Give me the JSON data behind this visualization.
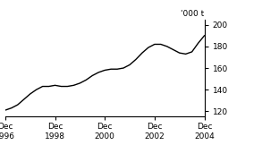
{
  "title": "",
  "ylabel": "'000 t",
  "ylim": [
    115,
    205
  ],
  "yticks": [
    120,
    140,
    160,
    180,
    200
  ],
  "xlim": [
    0,
    96
  ],
  "xtick_positions": [
    0,
    24,
    48,
    72,
    96
  ],
  "xtick_labels": [
    "Dec\n1996",
    "Dec\n1998",
    "Dec\n2000",
    "Dec\n2002",
    "Dec\n2004"
  ],
  "line_color": "#000000",
  "background_color": "#ffffff",
  "x": [
    0,
    3,
    6,
    9,
    12,
    15,
    18,
    21,
    24,
    27,
    30,
    33,
    36,
    39,
    42,
    45,
    48,
    51,
    54,
    57,
    60,
    63,
    66,
    69,
    72,
    75,
    78,
    81,
    84,
    87,
    90,
    93,
    96
  ],
  "y": [
    121,
    123,
    126,
    131,
    136,
    140,
    143,
    143,
    144,
    143,
    143,
    144,
    146,
    149,
    153,
    156,
    158,
    159,
    159,
    160,
    163,
    168,
    174,
    179,
    182,
    182,
    180,
    177,
    174,
    173,
    175,
    183,
    190
  ]
}
